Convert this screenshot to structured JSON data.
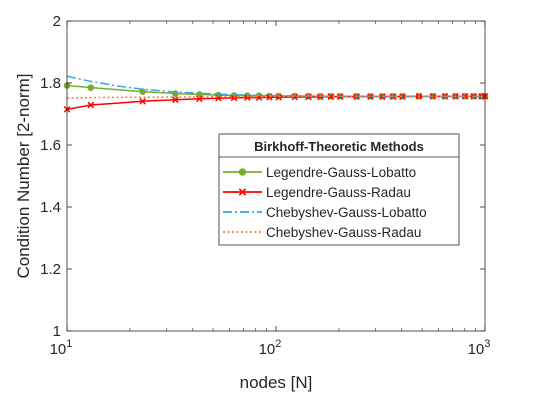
{
  "chart_data": {
    "type": "line",
    "xlabel": "nodes [N]",
    "ylabel": "Condition Number [2-norm]",
    "xscale": "log",
    "xlim": [
      10,
      1000
    ],
    "ylim": [
      1,
      2
    ],
    "grid": false,
    "xticks": [
      {
        "value": 10,
        "base": "10",
        "exp": "1"
      },
      {
        "value": 100,
        "base": "10",
        "exp": "2"
      },
      {
        "value": 1000,
        "base": "10",
        "exp": "3"
      }
    ],
    "yticks": [
      {
        "value": 1,
        "label": "1"
      },
      {
        "value": 1.2,
        "label": "1.2"
      },
      {
        "value": 1.4,
        "label": "1.4"
      },
      {
        "value": 1.6,
        "label": "1.6"
      },
      {
        "value": 1.8,
        "label": "1.8"
      },
      {
        "value": 2,
        "label": "2"
      }
    ],
    "legend": {
      "title": "Birkhoff-Theoretic Methods",
      "placement": "center-right"
    },
    "series": [
      {
        "name": "Legendre-Gauss-Lobatto",
        "color": "#77AC30",
        "line": "solid",
        "marker": "circle",
        "x": [
          10,
          13,
          23,
          33,
          43,
          53,
          63,
          73,
          83,
          93,
          103,
          123,
          143,
          163,
          183,
          203,
          243,
          283,
          323,
          363,
          403,
          483,
          563,
          643,
          723,
          803,
          883,
          963,
          1000
        ],
        "y": [
          1.792,
          1.785,
          1.772,
          1.766,
          1.763,
          1.761,
          1.76,
          1.759,
          1.759,
          1.758,
          1.758,
          1.758,
          1.758,
          1.757,
          1.757,
          1.757,
          1.757,
          1.757,
          1.757,
          1.757,
          1.757,
          1.757,
          1.757,
          1.757,
          1.757,
          1.757,
          1.757,
          1.757,
          1.757
        ]
      },
      {
        "name": "Legendre-Gauss-Radau",
        "color": "#FF0000",
        "line": "solid",
        "marker": "x",
        "x": [
          10,
          13,
          23,
          33,
          43,
          53,
          63,
          73,
          83,
          93,
          103,
          123,
          143,
          163,
          183,
          203,
          243,
          283,
          323,
          363,
          403,
          483,
          563,
          643,
          723,
          803,
          883,
          963,
          1000
        ],
        "y": [
          1.715,
          1.729,
          1.741,
          1.746,
          1.749,
          1.751,
          1.752,
          1.753,
          1.753,
          1.754,
          1.754,
          1.755,
          1.755,
          1.755,
          1.756,
          1.756,
          1.756,
          1.756,
          1.756,
          1.756,
          1.756,
          1.757,
          1.757,
          1.757,
          1.757,
          1.757,
          1.757,
          1.757,
          1.757
        ]
      },
      {
        "name": "Chebyshev-Gauss-Lobatto",
        "color": "#2FA9E6",
        "line": "dashdot",
        "marker": "none",
        "x": [
          10,
          13,
          18,
          23,
          33,
          43,
          53,
          63,
          73,
          83,
          103,
          143,
          203,
          303,
          503,
          1000
        ],
        "y": [
          1.822,
          1.805,
          1.789,
          1.78,
          1.771,
          1.767,
          1.764,
          1.762,
          1.761,
          1.76,
          1.759,
          1.758,
          1.757,
          1.757,
          1.757,
          1.757
        ]
      },
      {
        "name": "Chebyshev-Gauss-Radau",
        "color": "#FF7F27",
        "line": "dotted",
        "marker": "none",
        "x": [
          10,
          20,
          40,
          80,
          160,
          320,
          640,
          1000
        ],
        "y": [
          1.752,
          1.754,
          1.755,
          1.756,
          1.757,
          1.757,
          1.757,
          1.757
        ]
      }
    ]
  }
}
